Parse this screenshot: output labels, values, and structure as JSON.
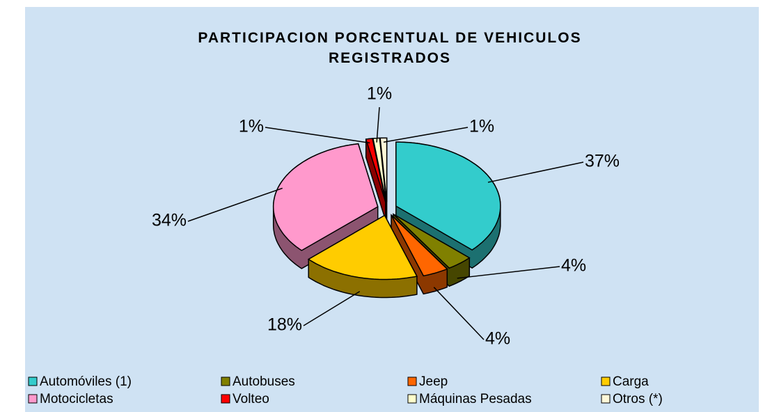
{
  "chart_data": {
    "type": "pie",
    "title": "PARTICIPACION PORCENTUAL DE VEHICULOS REGISTRADOS",
    "categories": [
      "Automóviles (1)",
      "Autobuses",
      "Jeep",
      "Carga",
      "Motocicletas",
      "Volteo",
      "Máquinas Pesadas",
      "Otros (*)"
    ],
    "values": [
      37,
      4,
      4,
      18,
      34,
      1,
      1,
      1
    ],
    "value_labels": [
      "37%",
      "4%",
      "4%",
      "18%",
      "34%",
      "1%",
      "1%",
      "1%"
    ],
    "colors": [
      "#33cccc",
      "#808000",
      "#ff6600",
      "#ffcc00",
      "#ff99cc",
      "#ff0000",
      "#ffffcc",
      "#fff8d8"
    ]
  }
}
